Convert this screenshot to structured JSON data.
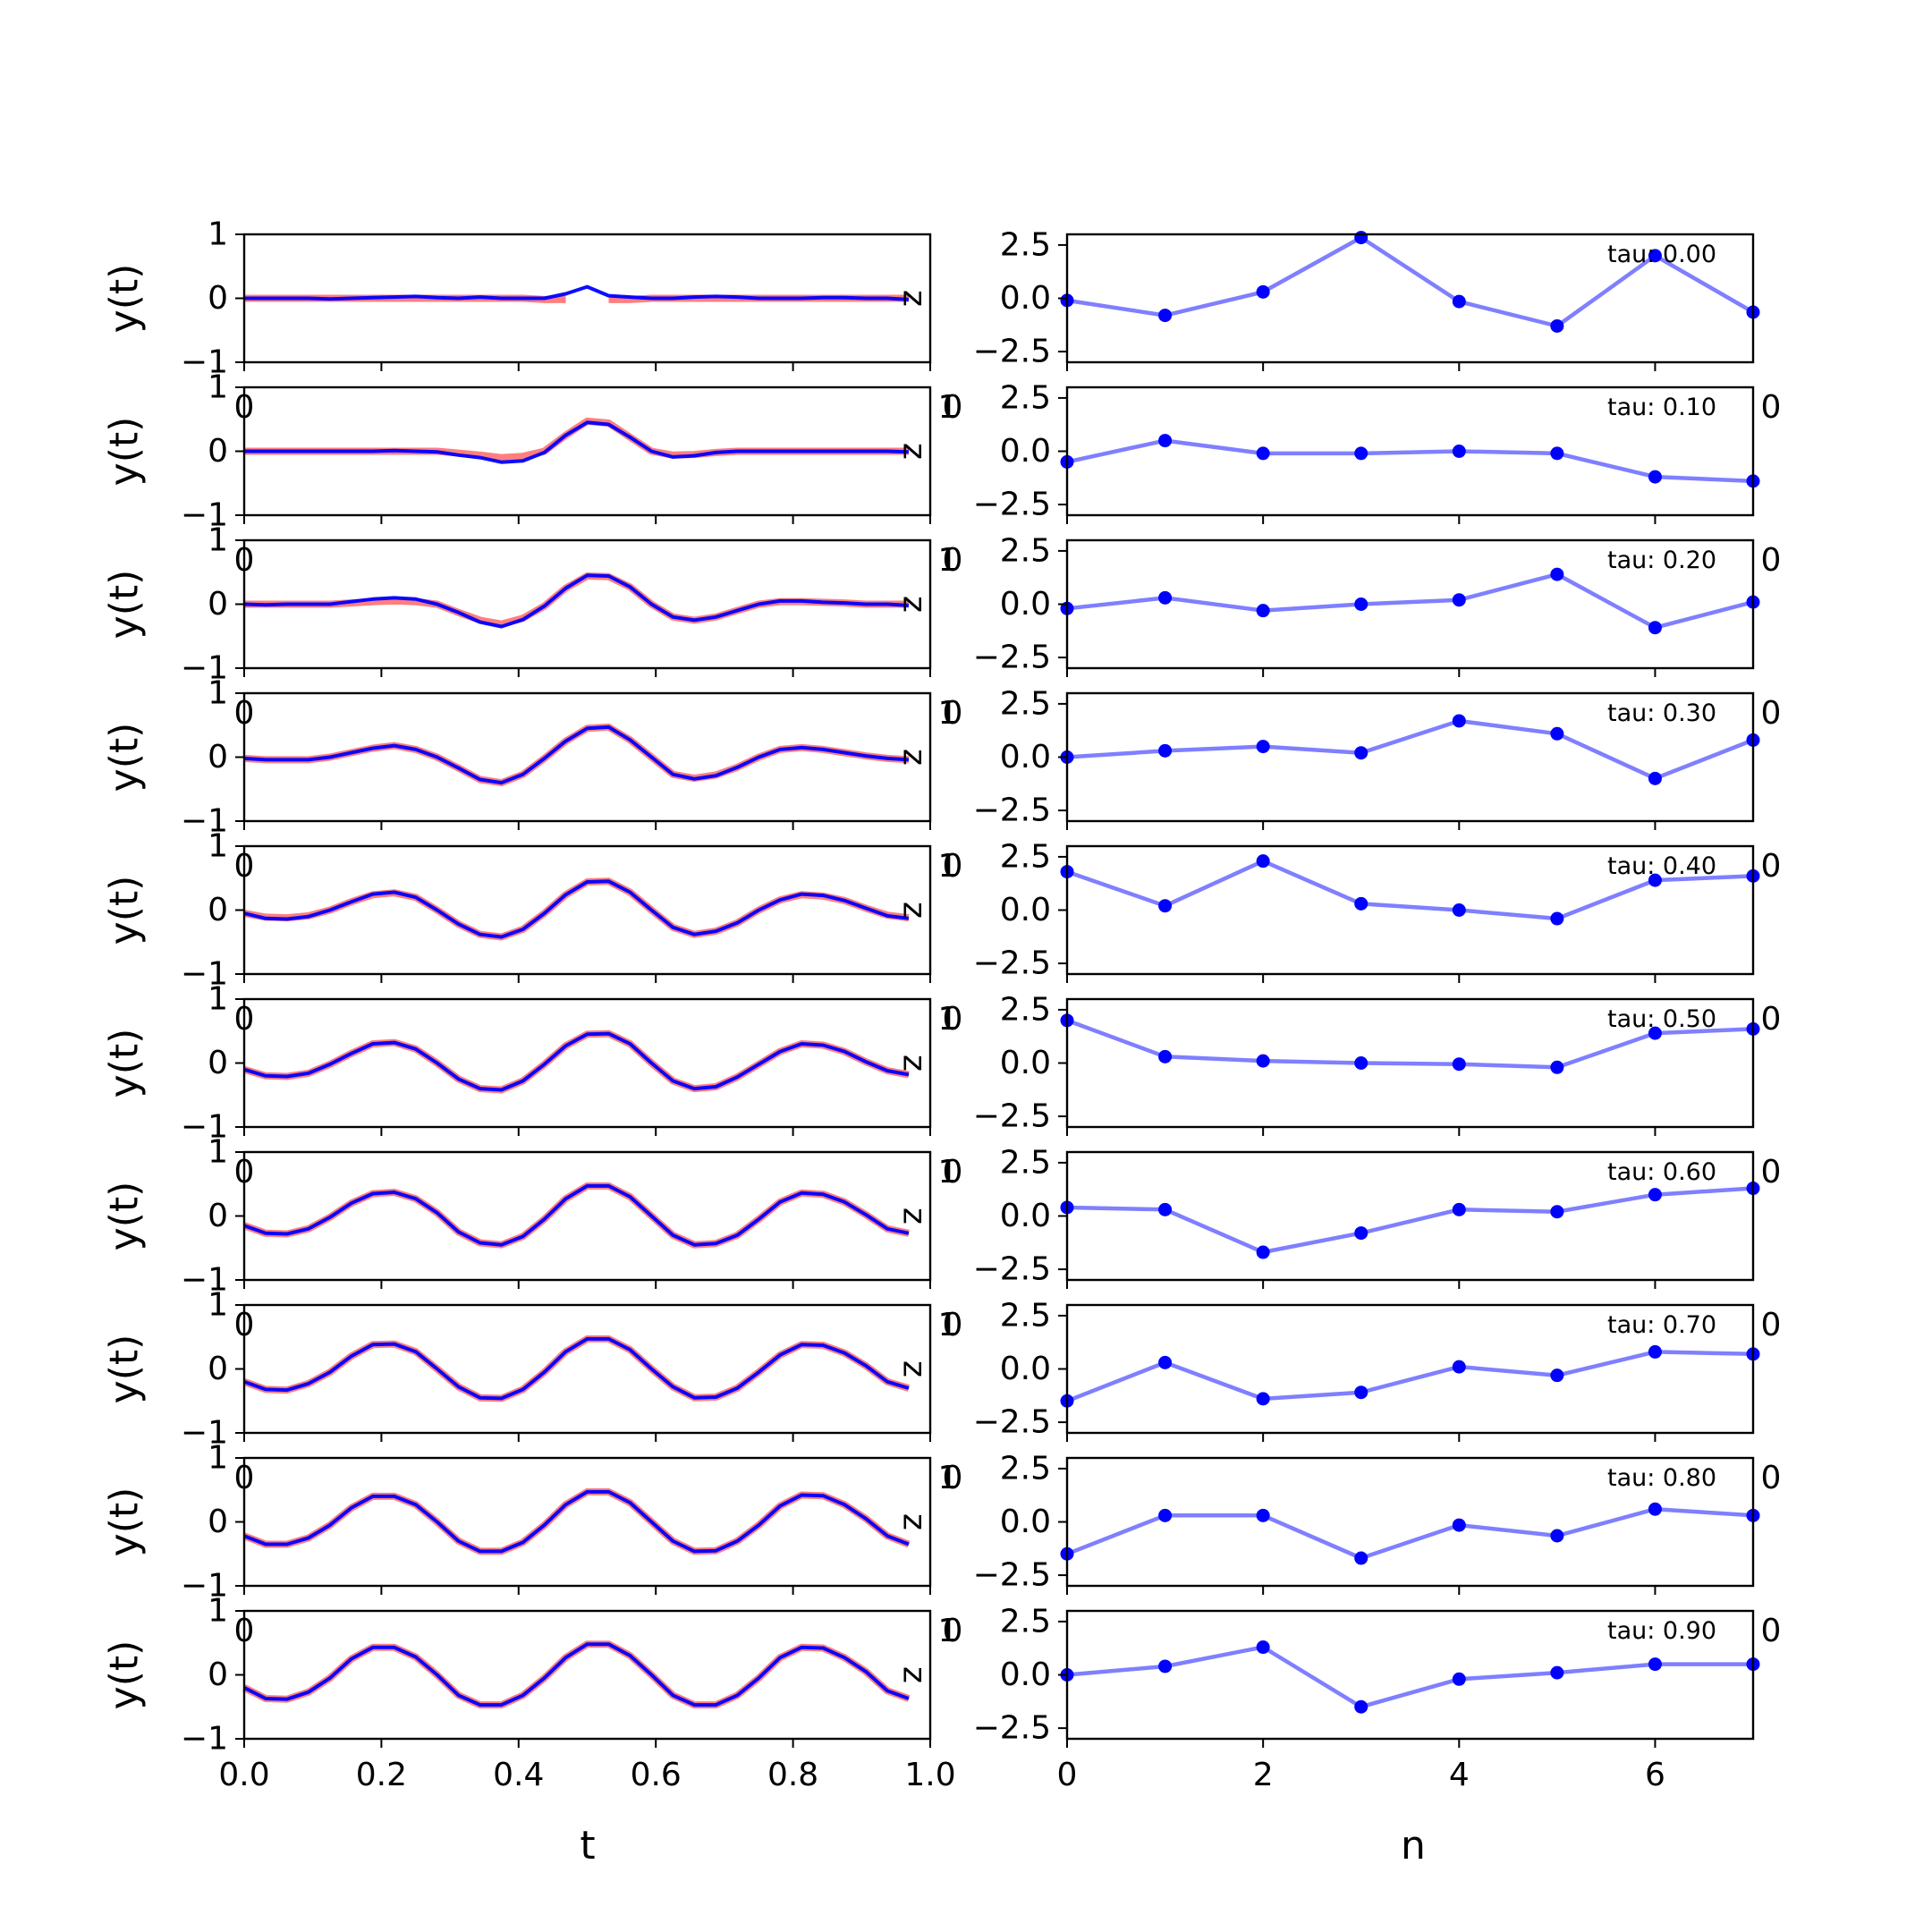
{
  "colors": {
    "signal": "#0000ff",
    "reconstruction": "#ff0000",
    "coefficients": "#0000ff",
    "frame": "#000000",
    "background": "#ffffff"
  },
  "chart_data": [
    {
      "type": "line",
      "panel": "left",
      "xlabel": "t",
      "ylabel": "y(t)",
      "xlim": [
        0.0,
        1.0
      ],
      "ylim": [
        -1,
        1
      ],
      "xticks": [
        "0.0",
        "0.2",
        "0.4",
        "0.6",
        "0.8",
        "1.0"
      ],
      "yticks": [
        "-1",
        "0",
        "1"
      ],
      "overlap_ticks": [
        "0",
        "1"
      ],
      "marker_text": "z",
      "x": [
        0.0,
        0.03125,
        0.0625,
        0.09375,
        0.125,
        0.15625,
        0.1875,
        0.21875,
        0.25,
        0.28125,
        0.3125,
        0.34375,
        0.375,
        0.40625,
        0.4375,
        0.46875,
        0.5,
        0.53125,
        0.5625,
        0.59375,
        0.625,
        0.65625,
        0.6875,
        0.71875,
        0.75,
        0.78125,
        0.8125,
        0.84375,
        0.875,
        0.90625,
        0.9375,
        0.96875
      ],
      "rows": [
        {
          "label": "tau: 0.00",
          "signal": [
            0.0,
            0.0,
            0.0,
            0.0,
            -0.01,
            0.0,
            0.01,
            0.02,
            0.03,
            0.01,
            0.0,
            0.02,
            0.0,
            0.0,
            0.0,
            0.07,
            0.18,
            0.04,
            0.02,
            0.0,
            0.0,
            0.02,
            0.03,
            0.02,
            0.0,
            0.0,
            0.0,
            0.01,
            0.01,
            0.0,
            0.0,
            -0.02
          ],
          "reconstruction": [
            0.0,
            0.0,
            0.0,
            0.0,
            0.0,
            0.0,
            0.0,
            0.0,
            0.0,
            0.0,
            0.0,
            0.0,
            0.0,
            0.0,
            -0.02,
            -0.02,
            null,
            -0.02,
            -0.02,
            0.0,
            0.0,
            0.0,
            0.0,
            0.0,
            0.0,
            0.0,
            0.0,
            0.0,
            0.0,
            0.0,
            0.0,
            0.0
          ]
        },
        {
          "label": "tau: 0.10",
          "signal": [
            0.0,
            0.0,
            0.0,
            0.0,
            0.0,
            0.0,
            0.0,
            0.01,
            0.0,
            -0.01,
            -0.06,
            -0.1,
            -0.17,
            -0.15,
            -0.02,
            0.25,
            0.45,
            0.42,
            0.22,
            0.0,
            -0.09,
            -0.07,
            -0.02,
            0.0,
            0.0,
            0.0,
            0.0,
            0.0,
            0.0,
            0.0,
            0.0,
            -0.01
          ],
          "reconstruction": [
            0.0,
            0.0,
            0.0,
            0.0,
            0.0,
            0.0,
            0.0,
            0.0,
            0.0,
            0.0,
            -0.03,
            -0.06,
            -0.1,
            -0.08,
            0.0,
            0.25,
            0.47,
            0.44,
            0.22,
            0.0,
            -0.06,
            -0.05,
            -0.02,
            0.0,
            0.0,
            0.0,
            0.0,
            0.0,
            0.0,
            0.0,
            0.0,
            0.0
          ]
        },
        {
          "label": "tau: 0.20",
          "signal": [
            0.0,
            -0.01,
            0.0,
            0.0,
            0.0,
            0.04,
            0.08,
            0.1,
            0.08,
            0.0,
            -0.13,
            -0.28,
            -0.35,
            -0.24,
            -0.03,
            0.25,
            0.45,
            0.44,
            0.27,
            0.0,
            -0.2,
            -0.25,
            -0.2,
            -0.1,
            0.0,
            0.05,
            0.05,
            0.03,
            0.02,
            0.0,
            0.0,
            -0.02
          ],
          "reconstruction": [
            0.0,
            0.0,
            0.0,
            0.0,
            0.0,
            0.02,
            0.04,
            0.05,
            0.04,
            0.0,
            -0.13,
            -0.25,
            -0.31,
            -0.22,
            -0.03,
            0.25,
            0.44,
            0.43,
            0.27,
            0.0,
            -0.2,
            -0.25,
            -0.2,
            -0.1,
            0.0,
            0.04,
            0.04,
            0.03,
            0.02,
            0.0,
            0.0,
            0.0
          ]
        },
        {
          "label": "tau: 0.30",
          "signal": [
            -0.02,
            -0.04,
            -0.04,
            -0.04,
            0.0,
            0.07,
            0.14,
            0.18,
            0.12,
            0.0,
            -0.17,
            -0.35,
            -0.4,
            -0.27,
            -0.02,
            0.25,
            0.45,
            0.47,
            0.27,
            0.0,
            -0.27,
            -0.34,
            -0.29,
            -0.16,
            0.0,
            0.12,
            0.15,
            0.12,
            0.07,
            0.02,
            -0.02,
            -0.04
          ],
          "reconstruction": [
            -0.02,
            -0.04,
            -0.04,
            -0.04,
            0.0,
            0.07,
            0.14,
            0.18,
            0.12,
            0.0,
            -0.17,
            -0.35,
            -0.4,
            -0.27,
            -0.02,
            0.25,
            0.45,
            0.47,
            0.27,
            0.0,
            -0.27,
            -0.33,
            -0.28,
            -0.16,
            0.0,
            0.12,
            0.15,
            0.12,
            0.07,
            0.02,
            -0.02,
            -0.04
          ]
        },
        {
          "label": "tau: 0.40",
          "signal": [
            -0.05,
            -0.13,
            -0.14,
            -0.1,
            0.0,
            0.13,
            0.25,
            0.28,
            0.2,
            0.0,
            -0.22,
            -0.38,
            -0.42,
            -0.3,
            -0.05,
            0.24,
            0.44,
            0.45,
            0.28,
            0.0,
            -0.27,
            -0.38,
            -0.33,
            -0.2,
            0.0,
            0.16,
            0.25,
            0.23,
            0.15,
            0.03,
            -0.09,
            -0.13
          ],
          "reconstruction": [
            -0.05,
            -0.11,
            -0.12,
            -0.09,
            0.0,
            0.13,
            0.24,
            0.27,
            0.2,
            0.0,
            -0.22,
            -0.38,
            -0.42,
            -0.3,
            -0.05,
            0.24,
            0.44,
            0.45,
            0.28,
            0.0,
            -0.27,
            -0.38,
            -0.33,
            -0.2,
            0.0,
            0.16,
            0.24,
            0.22,
            0.15,
            0.03,
            -0.08,
            -0.12
          ]
        },
        {
          "label": "tau: 0.50",
          "signal": [
            -0.1,
            -0.2,
            -0.21,
            -0.16,
            -0.02,
            0.15,
            0.3,
            0.32,
            0.22,
            0.0,
            -0.25,
            -0.4,
            -0.42,
            -0.28,
            -0.02,
            0.27,
            0.45,
            0.46,
            0.3,
            0.0,
            -0.28,
            -0.4,
            -0.37,
            -0.22,
            -0.02,
            0.18,
            0.3,
            0.28,
            0.18,
            0.02,
            -0.12,
            -0.18
          ],
          "reconstruction": [
            -0.1,
            -0.2,
            -0.21,
            -0.16,
            -0.02,
            0.15,
            0.3,
            0.32,
            0.22,
            0.0,
            -0.25,
            -0.4,
            -0.42,
            -0.28,
            -0.02,
            0.27,
            0.45,
            0.46,
            0.3,
            0.0,
            -0.28,
            -0.4,
            -0.37,
            -0.22,
            -0.02,
            0.18,
            0.3,
            0.28,
            0.18,
            0.02,
            -0.12,
            -0.18
          ]
        },
        {
          "label": "tau: 0.60",
          "signal": [
            -0.15,
            -0.27,
            -0.28,
            -0.2,
            -0.02,
            0.2,
            0.35,
            0.37,
            0.27,
            0.05,
            -0.25,
            -0.42,
            -0.45,
            -0.32,
            -0.05,
            0.27,
            0.47,
            0.47,
            0.3,
            0.0,
            -0.3,
            -0.45,
            -0.43,
            -0.3,
            -0.05,
            0.22,
            0.36,
            0.34,
            0.22,
            0.02,
            -0.2,
            -0.27
          ],
          "reconstruction": [
            -0.15,
            -0.27,
            -0.28,
            -0.2,
            -0.02,
            0.2,
            0.35,
            0.37,
            0.27,
            0.05,
            -0.25,
            -0.42,
            -0.45,
            -0.32,
            -0.05,
            0.27,
            0.47,
            0.47,
            0.3,
            0.0,
            -0.3,
            -0.45,
            -0.43,
            -0.3,
            -0.05,
            0.22,
            0.36,
            0.34,
            0.22,
            0.02,
            -0.2,
            -0.27
          ]
        },
        {
          "label": "tau: 0.70",
          "signal": [
            -0.2,
            -0.32,
            -0.33,
            -0.23,
            -0.05,
            0.2,
            0.38,
            0.39,
            0.27,
            0.0,
            -0.28,
            -0.45,
            -0.46,
            -0.32,
            -0.05,
            0.27,
            0.47,
            0.47,
            0.3,
            0.0,
            -0.28,
            -0.45,
            -0.44,
            -0.3,
            -0.05,
            0.22,
            0.38,
            0.37,
            0.25,
            0.05,
            -0.2,
            -0.3
          ],
          "reconstruction": [
            -0.2,
            -0.32,
            -0.33,
            -0.23,
            -0.05,
            0.2,
            0.38,
            0.39,
            0.27,
            0.0,
            -0.28,
            -0.45,
            -0.46,
            -0.32,
            -0.05,
            0.27,
            0.47,
            0.47,
            0.3,
            0.0,
            -0.28,
            -0.45,
            -0.44,
            -0.3,
            -0.05,
            0.22,
            0.38,
            0.37,
            0.25,
            0.05,
            -0.2,
            -0.3
          ]
        },
        {
          "label": "tau: 0.80",
          "signal": [
            -0.22,
            -0.35,
            -0.35,
            -0.25,
            -0.05,
            0.22,
            0.4,
            0.4,
            0.27,
            0.0,
            -0.3,
            -0.46,
            -0.46,
            -0.32,
            -0.05,
            0.27,
            0.47,
            0.47,
            0.3,
            0.0,
            -0.3,
            -0.46,
            -0.45,
            -0.3,
            -0.05,
            0.25,
            0.42,
            0.41,
            0.27,
            0.05,
            -0.22,
            -0.35
          ],
          "reconstruction": [
            -0.22,
            -0.35,
            -0.35,
            -0.25,
            -0.05,
            0.22,
            0.4,
            0.4,
            0.27,
            0.0,
            -0.3,
            -0.46,
            -0.46,
            -0.32,
            -0.05,
            0.27,
            0.47,
            0.47,
            0.3,
            0.0,
            -0.3,
            -0.46,
            -0.45,
            -0.3,
            -0.05,
            0.25,
            0.42,
            0.41,
            0.27,
            0.05,
            -0.22,
            -0.35
          ]
        },
        {
          "label": "tau: 0.90",
          "signal": [
            -0.2,
            -0.37,
            -0.38,
            -0.27,
            -0.05,
            0.25,
            0.43,
            0.43,
            0.28,
            0.0,
            -0.32,
            -0.47,
            -0.47,
            -0.32,
            -0.05,
            0.27,
            0.48,
            0.48,
            0.3,
            0.0,
            -0.32,
            -0.47,
            -0.47,
            -0.32,
            -0.05,
            0.27,
            0.43,
            0.42,
            0.27,
            0.05,
            -0.25,
            -0.37
          ],
          "reconstruction": [
            -0.2,
            -0.37,
            -0.38,
            -0.27,
            -0.05,
            0.25,
            0.43,
            0.43,
            0.28,
            0.0,
            -0.32,
            -0.47,
            -0.47,
            -0.32,
            -0.05,
            0.27,
            0.48,
            0.48,
            0.3,
            0.0,
            -0.32,
            -0.47,
            -0.47,
            -0.32,
            -0.05,
            0.27,
            0.43,
            0.42,
            0.27,
            0.05,
            -0.25,
            -0.37
          ]
        }
      ]
    },
    {
      "type": "line",
      "panel": "right",
      "xlabel": "n",
      "xlim": [
        0,
        7
      ],
      "ylim": [
        -3.0,
        3.0
      ],
      "xticks": [
        0,
        2,
        4,
        6
      ],
      "yticks": [
        "2.5",
        "0.0",
        "-2.5"
      ],
      "overlap_ticks": [
        "0",
        "0"
      ],
      "x": [
        0,
        1,
        2,
        3,
        4,
        5,
        6,
        7
      ],
      "rows": [
        {
          "label": "tau: 0.00",
          "values": [
            -0.1,
            -0.8,
            0.3,
            2.85,
            -0.15,
            -1.3,
            2.0,
            -0.65
          ]
        },
        {
          "label": "tau: 0.10",
          "values": [
            -0.5,
            0.5,
            -0.1,
            -0.1,
            0.0,
            -0.1,
            -1.2,
            -1.4
          ]
        },
        {
          "label": "tau: 0.20",
          "values": [
            -0.2,
            0.3,
            -0.3,
            0.0,
            0.2,
            1.4,
            -1.1,
            0.1
          ]
        },
        {
          "label": "tau: 0.30",
          "values": [
            0.0,
            0.3,
            0.5,
            0.2,
            1.7,
            1.1,
            -1.0,
            0.8
          ]
        },
        {
          "label": "tau: 0.40",
          "values": [
            1.8,
            0.2,
            2.3,
            0.3,
            0.0,
            -0.4,
            1.4,
            1.6
          ]
        },
        {
          "label": "tau: 0.50",
          "values": [
            2.0,
            0.3,
            0.1,
            0.0,
            -0.05,
            -0.2,
            1.4,
            1.6
          ]
        },
        {
          "label": "tau: 0.60",
          "values": [
            0.4,
            0.3,
            -1.7,
            -0.8,
            0.3,
            0.2,
            1.0,
            1.3
          ]
        },
        {
          "label": "tau: 0.70",
          "values": [
            -1.5,
            0.3,
            -1.4,
            -1.1,
            0.1,
            -0.3,
            0.8,
            0.7
          ]
        },
        {
          "label": "tau: 0.80",
          "values": [
            -1.5,
            0.3,
            0.3,
            -1.7,
            -0.15,
            -0.65,
            0.6,
            0.3
          ]
        },
        {
          "label": "tau: 0.90",
          "values": [
            0.0,
            0.4,
            1.3,
            -1.5,
            -0.2,
            0.1,
            0.5,
            0.5
          ]
        }
      ]
    }
  ]
}
